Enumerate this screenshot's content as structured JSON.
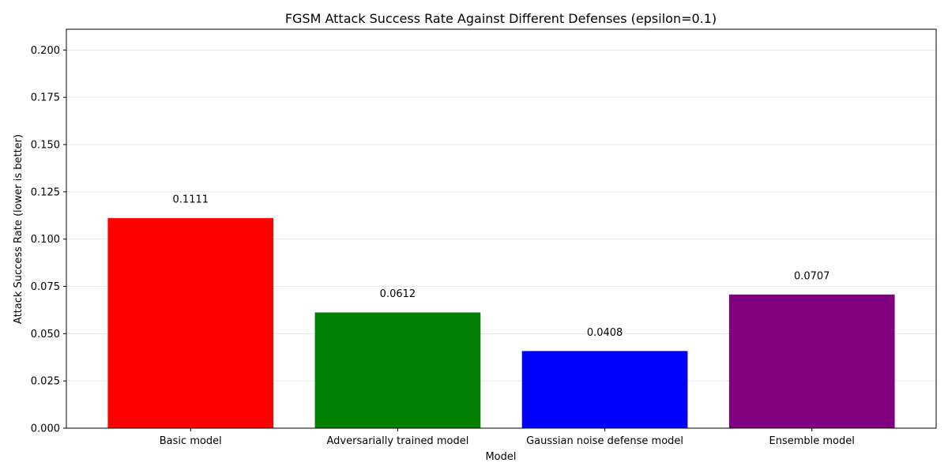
{
  "chart_data": {
    "type": "bar",
    "title": "FGSM Attack Success Rate Against Different Defenses (epsilon=0.1)",
    "xlabel": "Model",
    "ylabel": "Attack Success Rate (lower is better)",
    "categories": [
      "Basic model",
      "Adversarially trained model",
      "Gaussian noise defense model",
      "Ensemble model"
    ],
    "values": [
      0.1111,
      0.0612,
      0.0408,
      0.0707
    ],
    "value_labels": [
      "0.1111",
      "0.0612",
      "0.0408",
      "0.0707"
    ],
    "colors": [
      "#ff0000",
      "#008000",
      "#0000ff",
      "#800080"
    ],
    "ylim": [
      0,
      0.211
    ],
    "yticks": [
      0.0,
      0.025,
      0.05,
      0.075,
      0.1,
      0.125,
      0.15,
      0.175,
      0.2
    ],
    "ytick_labels": [
      "0.000",
      "0.025",
      "0.050",
      "0.075",
      "0.100",
      "0.125",
      "0.150",
      "0.175",
      "0.200"
    ],
    "grid": "y-axis, light",
    "legend": "none"
  }
}
